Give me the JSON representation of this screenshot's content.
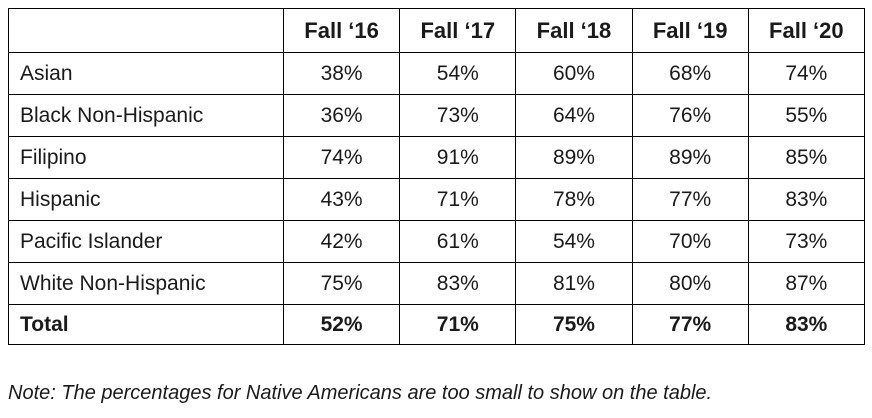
{
  "table": {
    "header": {
      "blank": "",
      "columns": [
        "Fall ‘16",
        "Fall ‘17",
        "Fall ‘18",
        "Fall ‘19",
        "Fall ‘20"
      ]
    },
    "rows": [
      {
        "label": "Asian",
        "values": [
          "38%",
          "54%",
          "60%",
          "68%",
          "74%"
        ]
      },
      {
        "label": "Black Non-Hispanic",
        "values": [
          "36%",
          "73%",
          "64%",
          "76%",
          "55%"
        ]
      },
      {
        "label": "Filipino",
        "values": [
          "74%",
          "91%",
          "89%",
          "89%",
          "85%"
        ]
      },
      {
        "label": "Hispanic",
        "values": [
          "43%",
          "71%",
          "78%",
          "77%",
          "83%"
        ]
      },
      {
        "label": "Pacific Islander",
        "values": [
          "42%",
          "61%",
          "54%",
          "70%",
          "73%"
        ]
      },
      {
        "label": "White Non-Hispanic",
        "values": [
          "75%",
          "83%",
          "81%",
          "80%",
          "87%"
        ]
      }
    ],
    "total": {
      "label": "Total",
      "values": [
        "52%",
        "71%",
        "75%",
        "77%",
        "83%"
      ]
    }
  },
  "note": "Note: The percentages for Native Americans are too small to show on the table."
}
